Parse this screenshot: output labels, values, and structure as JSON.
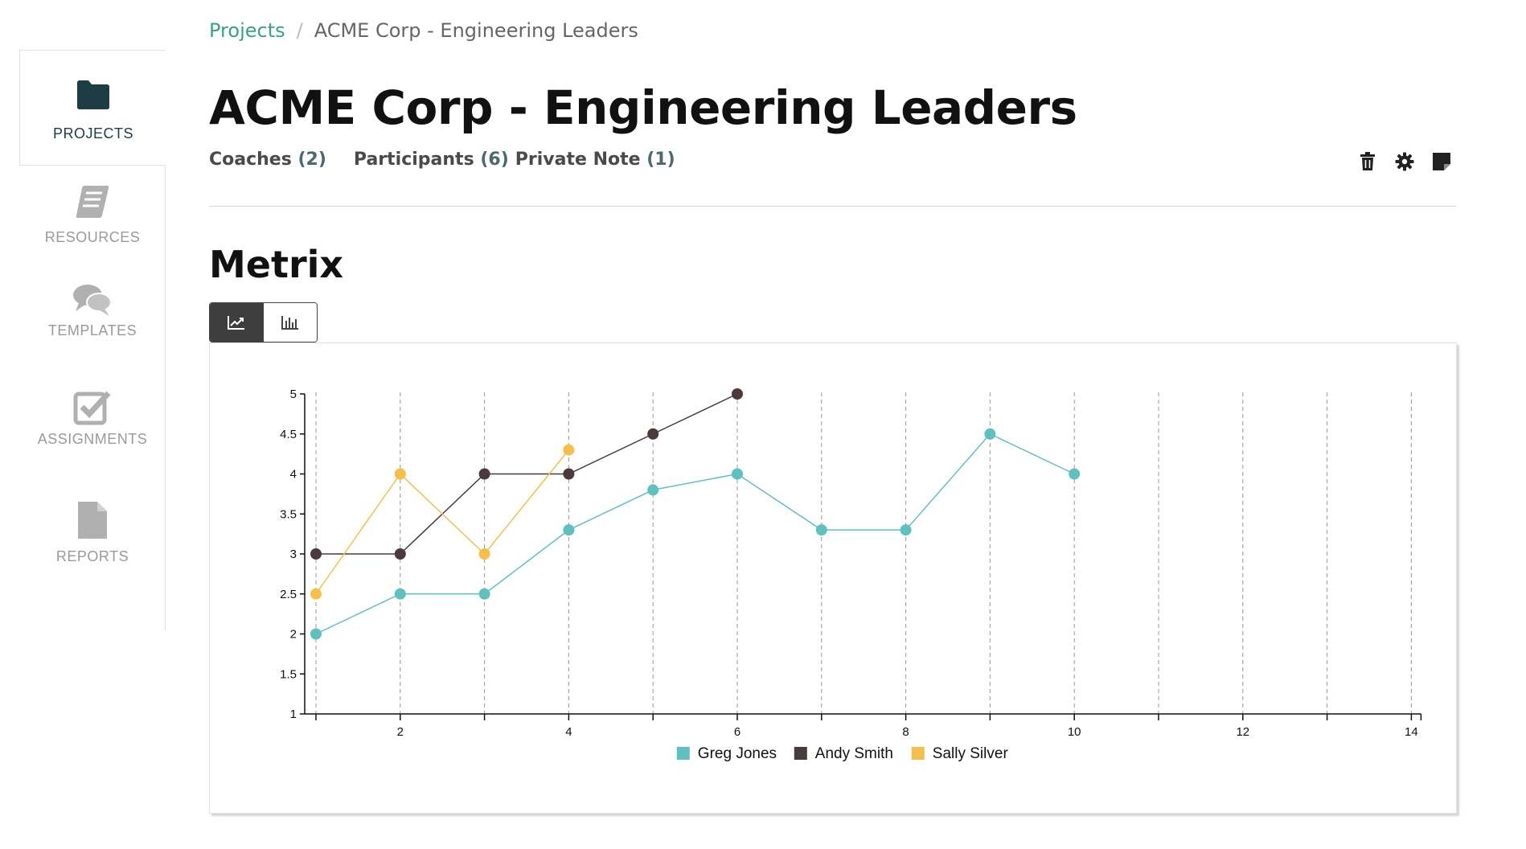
{
  "sidebar": {
    "items": [
      {
        "label": "PROJECTS",
        "icon": "folder-icon",
        "active": true
      },
      {
        "label": "RESOURCES",
        "icon": "book-icon",
        "active": false
      },
      {
        "label": "TEMPLATES",
        "icon": "chat-bubbles-icon",
        "active": false
      },
      {
        "label": "ASSIGNMENTS",
        "icon": "checkbox-icon",
        "active": false
      },
      {
        "label": "REPORTS",
        "icon": "document-icon",
        "active": false
      }
    ]
  },
  "breadcrumb": {
    "link": "Projects",
    "separator": "/",
    "current": "ACME Corp - Engineering Leaders"
  },
  "page": {
    "title": "ACME Corp - Engineering Leaders"
  },
  "tabs": [
    {
      "label": "Coaches",
      "count": "(2)"
    },
    {
      "label": "Participants",
      "count": "(6)"
    },
    {
      "label": "Private Note",
      "count": "(1)"
    }
  ],
  "actions": {
    "icons": [
      "trash-icon",
      "gear-icon",
      "sticky-note-icon"
    ]
  },
  "section": {
    "title": "Metrix"
  },
  "view_toggle": {
    "options": [
      "line-chart-icon",
      "bar-chart-icon"
    ],
    "selected": "line-chart-icon"
  },
  "colors": {
    "accent_green": "#37a47f",
    "sidebar_active": "#1b3d43",
    "greg": "#5fc0c0",
    "andy": "#4b3a3c",
    "sally": "#f6bf4a"
  },
  "chart_data": {
    "type": "line",
    "xlim": [
      1,
      14
    ],
    "ylim": [
      1,
      5
    ],
    "x_ticks_labeled": [
      2,
      4,
      6,
      8,
      10,
      12,
      14
    ],
    "x_ticks_all": [
      1,
      2,
      3,
      4,
      5,
      6,
      7,
      8,
      9,
      10,
      11,
      12,
      13,
      14
    ],
    "y_ticks": [
      "1",
      "1.5",
      "2",
      "2.5",
      "3",
      "3.5",
      "4",
      "4.5",
      "5"
    ],
    "vertical_grid": "dashed",
    "legend_placement": "bottom-center",
    "series": [
      {
        "name": "Greg Jones",
        "color": "#5fc0c0",
        "x": [
          1,
          2,
          3,
          4,
          5,
          6,
          7,
          8,
          9,
          10
        ],
        "values": [
          2,
          2.5,
          2.5,
          3.3,
          3.8,
          4,
          3.3,
          3.3,
          4.5,
          4
        ]
      },
      {
        "name": "Andy Smith",
        "color": "#4b3a3c",
        "x": [
          1,
          2,
          3,
          4,
          5,
          6
        ],
        "values": [
          3,
          3,
          4,
          4,
          4.5,
          5
        ]
      },
      {
        "name": "Sally Silver",
        "color": "#f6bf4a",
        "x": [
          1,
          2,
          3,
          4
        ],
        "values": [
          2.5,
          4,
          3,
          4.3
        ]
      }
    ]
  }
}
